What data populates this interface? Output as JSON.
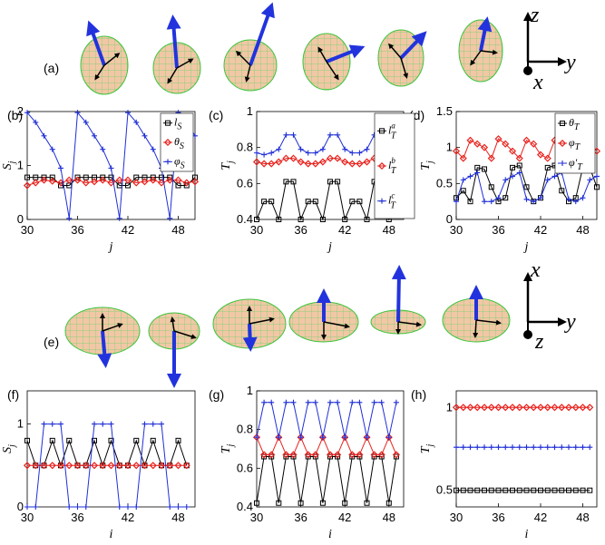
{
  "figure": {
    "panel_labels": [
      "(a)",
      "(b)",
      "(c)",
      "(d)",
      "(e)",
      "(f)",
      "(g)",
      "(h)"
    ],
    "frame_top": {
      "axis_labels": [
        "z",
        "y",
        "x"
      ]
    },
    "frame_bottom": {
      "axis_labels": [
        "x",
        "y",
        "z"
      ]
    },
    "colors": {
      "black": "#000000",
      "red": "#e8211c",
      "blue": "#1f2fd6",
      "sphere_fill": "#f0c9a8",
      "sphere_grid": "#5fd35f",
      "arrow_blue": "#2233dd"
    }
  },
  "chart_data": [
    {
      "type": "line",
      "panel": "(b)",
      "xlabel": "j",
      "ylabel": "S_j",
      "xlim": [
        30,
        50
      ],
      "ylim": [
        0,
        2
      ],
      "xticks": [
        "30",
        "36",
        "42",
        "48"
      ],
      "yticks": [
        "0",
        "1",
        "2"
      ],
      "legend_position": "top-right",
      "series": [
        {
          "name": "l_S",
          "color": "#000000",
          "marker": "square",
          "x": [
            30,
            31,
            32,
            33,
            34,
            35,
            36,
            37,
            38,
            39,
            40,
            41,
            42,
            43,
            44,
            45,
            46,
            47,
            48,
            49,
            50
          ],
          "y": [
            0.78,
            0.78,
            0.78,
            0.78,
            0.63,
            0.63,
            0.78,
            0.78,
            0.78,
            0.78,
            0.78,
            0.63,
            0.63,
            0.78,
            0.78,
            0.78,
            0.78,
            0.78,
            0.63,
            0.63,
            0.78
          ]
        },
        {
          "name": "θ_S",
          "color": "#e8211c",
          "marker": "diamond",
          "x": [
            30,
            31,
            32,
            33,
            34,
            35,
            36,
            37,
            38,
            39,
            40,
            41,
            42,
            43,
            44,
            45,
            46,
            47,
            48,
            49,
            50
          ],
          "y": [
            0.63,
            0.68,
            0.73,
            0.71,
            0.68,
            0.73,
            0.73,
            0.68,
            0.7,
            0.73,
            0.68,
            0.73,
            0.73,
            0.68,
            0.7,
            0.73,
            0.68,
            0.73,
            0.73,
            0.68,
            0.7
          ]
        },
        {
          "name": "φ_S",
          "color": "#1f2fd6",
          "marker": "plus",
          "x": [
            30,
            31,
            32,
            33,
            34,
            35,
            36,
            37,
            38,
            39,
            40,
            41,
            42,
            43,
            44,
            45,
            46,
            47,
            48,
            49,
            50
          ],
          "y": [
            1.98,
            1.8,
            1.55,
            1.3,
            0.95,
            0.02,
            1.98,
            1.8,
            1.55,
            1.3,
            0.95,
            0.02,
            1.98,
            1.8,
            1.55,
            1.3,
            0.95,
            0.02,
            1.98,
            1.8,
            1.55
          ]
        }
      ]
    },
    {
      "type": "line",
      "panel": "(c)",
      "xlabel": "j",
      "ylabel": "T_j",
      "xlim": [
        30,
        50
      ],
      "ylim": [
        0.4,
        1.0
      ],
      "xticks": [
        "30",
        "36",
        "42",
        "48"
      ],
      "yticks": [
        "0.4",
        "0.6",
        "0.8",
        "1"
      ],
      "legend_position": "right",
      "series": [
        {
          "name": "l_T^a",
          "color": "#000000",
          "marker": "square",
          "x": [
            30,
            31,
            32,
            33,
            34,
            35,
            36,
            37,
            38,
            39,
            40,
            41,
            42,
            43,
            44,
            45,
            46,
            47,
            48,
            49,
            50
          ],
          "y": [
            0.4,
            0.5,
            0.5,
            0.4,
            0.61,
            0.61,
            0.4,
            0.5,
            0.5,
            0.4,
            0.61,
            0.61,
            0.4,
            0.5,
            0.5,
            0.4,
            0.61,
            0.61,
            0.4,
            0.5,
            0.5
          ]
        },
        {
          "name": "l_T^b",
          "color": "#e8211c",
          "marker": "diamond",
          "x": [
            30,
            31,
            32,
            33,
            34,
            35,
            36,
            37,
            38,
            39,
            40,
            41,
            42,
            43,
            44,
            45,
            46,
            47,
            48,
            49,
            50
          ],
          "y": [
            0.72,
            0.71,
            0.71,
            0.72,
            0.74,
            0.74,
            0.72,
            0.71,
            0.71,
            0.72,
            0.74,
            0.74,
            0.72,
            0.71,
            0.71,
            0.72,
            0.74,
            0.74,
            0.72,
            0.71,
            0.71
          ]
        },
        {
          "name": "l_T^c",
          "color": "#1f2fd6",
          "marker": "plus",
          "x": [
            30,
            31,
            32,
            33,
            34,
            35,
            36,
            37,
            38,
            39,
            40,
            41,
            42,
            43,
            44,
            45,
            46,
            47,
            48,
            49,
            50
          ],
          "y": [
            0.77,
            0.76,
            0.77,
            0.79,
            0.87,
            0.87,
            0.79,
            0.77,
            0.77,
            0.79,
            0.87,
            0.87,
            0.79,
            0.77,
            0.77,
            0.79,
            0.87,
            0.87,
            0.79,
            0.77,
            0.77
          ]
        }
      ]
    },
    {
      "type": "line",
      "panel": "(d)",
      "xlabel": "j",
      "ylabel": "T_j",
      "xlim": [
        30,
        50
      ],
      "ylim": [
        0,
        1.5
      ],
      "xticks": [
        "30",
        "36",
        "42",
        "48"
      ],
      "yticks": [
        "0",
        "0.5",
        "1",
        "1.5"
      ],
      "legend_position": "top-right",
      "series": [
        {
          "name": "θ_T",
          "color": "#000000",
          "marker": "square",
          "x": [
            30,
            31,
            32,
            33,
            34,
            35,
            36,
            37,
            38,
            39,
            40,
            41,
            42,
            43,
            44,
            45,
            46,
            47,
            48,
            49,
            50
          ],
          "y": [
            0.3,
            0.4,
            0.25,
            0.72,
            0.7,
            0.45,
            0.25,
            0.3,
            0.72,
            0.75,
            0.45,
            0.25,
            0.3,
            0.72,
            0.75,
            0.4,
            0.25,
            0.3,
            0.72,
            0.72,
            0.45
          ]
        },
        {
          "name": "φ_T",
          "color": "#e8211c",
          "marker": "diamond",
          "x": [
            30,
            31,
            32,
            33,
            34,
            35,
            36,
            37,
            38,
            39,
            40,
            41,
            42,
            43,
            44,
            45,
            46,
            47,
            48,
            49,
            50
          ],
          "y": [
            0.95,
            0.85,
            1.1,
            1.05,
            1.0,
            0.85,
            1.12,
            1.05,
            0.95,
            0.85,
            1.1,
            1.05,
            0.9,
            0.85,
            1.1,
            1.05,
            0.95,
            0.85,
            1.1,
            1.05,
            0.95
          ]
        },
        {
          "name": "φ'_T",
          "color": "#1f2fd6",
          "marker": "plus",
          "x": [
            30,
            31,
            32,
            33,
            34,
            35,
            36,
            37,
            38,
            39,
            40,
            41,
            42,
            43,
            44,
            45,
            46,
            47,
            48,
            49,
            50
          ],
          "y": [
            0.25,
            0.55,
            0.6,
            0.65,
            0.25,
            0.25,
            0.3,
            0.55,
            0.6,
            0.65,
            0.28,
            0.25,
            0.3,
            0.55,
            0.6,
            0.65,
            0.28,
            0.25,
            0.3,
            0.55,
            0.6
          ]
        }
      ]
    },
    {
      "type": "line",
      "panel": "(f)",
      "xlabel": "i",
      "ylabel": "S_j",
      "xlim": [
        30,
        50
      ],
      "ylim": [
        0,
        1.4
      ],
      "xticks": [
        "30",
        "36",
        "42",
        "48"
      ],
      "yticks": [
        "0",
        "1"
      ],
      "series": [
        {
          "name": "",
          "color": "#000000",
          "marker": "square",
          "x": [
            30,
            31,
            32,
            33,
            34,
            35,
            36,
            37,
            38,
            39,
            40,
            41,
            42,
            43,
            44,
            45,
            46,
            47,
            48,
            49
          ],
          "y": [
            0.8,
            0.5,
            0.5,
            0.8,
            0.5,
            0.8,
            0.5,
            0.5,
            0.8,
            0.5,
            0.8,
            0.5,
            0.5,
            0.8,
            0.5,
            0.8,
            0.5,
            0.5,
            0.8,
            0.5
          ]
        },
        {
          "name": "",
          "color": "#e8211c",
          "marker": "diamond",
          "x": [
            30,
            31,
            32,
            33,
            34,
            35,
            36,
            37,
            38,
            39,
            40,
            41,
            42,
            43,
            44,
            45,
            46,
            47,
            48,
            49
          ],
          "y": [
            0.5,
            0.5,
            0.5,
            0.5,
            0.5,
            0.5,
            0.5,
            0.5,
            0.5,
            0.5,
            0.5,
            0.5,
            0.5,
            0.5,
            0.5,
            0.5,
            0.5,
            0.5,
            0.5,
            0.5
          ]
        },
        {
          "name": "",
          "color": "#1f2fd6",
          "marker": "plus",
          "x": [
            30,
            31,
            32,
            33,
            34,
            35,
            36,
            37,
            38,
            39,
            40,
            41,
            42,
            43,
            44,
            45,
            46,
            47,
            48,
            49
          ],
          "y": [
            0,
            0,
            1,
            1,
            1,
            0,
            0,
            0,
            1,
            1,
            1,
            0,
            0,
            0,
            1,
            1,
            1,
            0,
            0,
            0
          ]
        }
      ]
    },
    {
      "type": "line",
      "panel": "(g)",
      "xlabel": "i",
      "ylabel": "T_j",
      "xlim": [
        30,
        50
      ],
      "ylim": [
        0.4,
        1.0
      ],
      "xticks": [
        "30",
        "36",
        "42",
        "48"
      ],
      "yticks": [
        "0.4",
        "0.6",
        "0.8",
        "1"
      ],
      "series": [
        {
          "name": "",
          "color": "#000000",
          "marker": "square",
          "x": [
            30,
            31,
            32,
            33,
            34,
            35,
            36,
            37,
            38,
            39,
            40,
            41,
            42,
            43,
            44,
            45,
            46,
            47,
            48,
            49
          ],
          "y": [
            0.42,
            0.66,
            0.66,
            0.42,
            0.66,
            0.66,
            0.42,
            0.66,
            0.66,
            0.42,
            0.66,
            0.66,
            0.42,
            0.66,
            0.66,
            0.42,
            0.66,
            0.66,
            0.42,
            0.66
          ]
        },
        {
          "name": "",
          "color": "#e8211c",
          "marker": "diamond",
          "x": [
            30,
            31,
            32,
            33,
            34,
            35,
            36,
            37,
            38,
            39,
            40,
            41,
            42,
            43,
            44,
            45,
            46,
            47,
            48,
            49
          ],
          "y": [
            0.76,
            0.67,
            0.67,
            0.76,
            0.67,
            0.67,
            0.76,
            0.67,
            0.67,
            0.76,
            0.67,
            0.67,
            0.76,
            0.67,
            0.67,
            0.76,
            0.67,
            0.67,
            0.76,
            0.67
          ]
        },
        {
          "name": "",
          "color": "#1f2fd6",
          "marker": "plus",
          "x": [
            30,
            31,
            32,
            33,
            34,
            35,
            36,
            37,
            38,
            39,
            40,
            41,
            42,
            43,
            44,
            45,
            46,
            47,
            48,
            49
          ],
          "y": [
            0.76,
            0.94,
            0.94,
            0.76,
            0.94,
            0.94,
            0.76,
            0.94,
            0.94,
            0.76,
            0.94,
            0.94,
            0.76,
            0.94,
            0.94,
            0.76,
            0.94,
            0.94,
            0.76,
            0.94
          ]
        }
      ]
    },
    {
      "type": "line",
      "panel": "(h)",
      "xlabel": "i",
      "ylabel": "T_j",
      "xlim": [
        30,
        50
      ],
      "ylim": [
        0.4,
        1.1
      ],
      "xticks": [
        "30",
        "36",
        "42",
        "48"
      ],
      "yticks": [
        "0.5",
        "1"
      ],
      "series": [
        {
          "name": "",
          "color": "#000000",
          "marker": "square",
          "x": [
            30,
            31,
            32,
            33,
            34,
            35,
            36,
            37,
            38,
            39,
            40,
            41,
            42,
            43,
            44,
            45,
            46,
            47,
            48,
            49
          ],
          "y": [
            0.5,
            0.5,
            0.5,
            0.5,
            0.5,
            0.5,
            0.5,
            0.5,
            0.5,
            0.5,
            0.5,
            0.5,
            0.5,
            0.5,
            0.5,
            0.5,
            0.5,
            0.5,
            0.5,
            0.5
          ]
        },
        {
          "name": "",
          "color": "#e8211c",
          "marker": "diamond",
          "x": [
            30,
            31,
            32,
            33,
            34,
            35,
            36,
            37,
            38,
            39,
            40,
            41,
            42,
            43,
            44,
            45,
            46,
            47,
            48,
            49
          ],
          "y": [
            1,
            1,
            1,
            1,
            1,
            1,
            1,
            1,
            1,
            1,
            1,
            1,
            1,
            1,
            1,
            1,
            1,
            1,
            1,
            1
          ]
        },
        {
          "name": "",
          "color": "#1f2fd6",
          "marker": "plus",
          "x": [
            30,
            31,
            32,
            33,
            34,
            35,
            36,
            37,
            38,
            39,
            40,
            41,
            42,
            43,
            44,
            45,
            46,
            47,
            48,
            49
          ],
          "y": [
            0.76,
            0.76,
            0.76,
            0.76,
            0.76,
            0.76,
            0.76,
            0.76,
            0.76,
            0.76,
            0.76,
            0.76,
            0.76,
            0.76,
            0.76,
            0.76,
            0.76,
            0.76,
            0.76,
            0.76
          ]
        }
      ]
    }
  ]
}
